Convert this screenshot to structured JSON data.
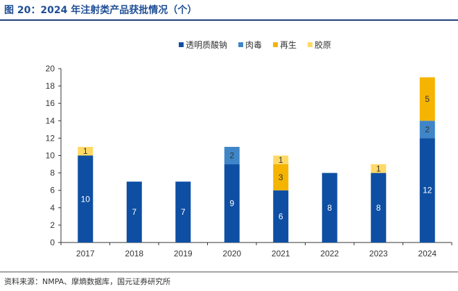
{
  "figure": {
    "title": "图 20：2024 年注射类产品获批情况（个）",
    "source": "资料来源：NMPA、摩熵数据库，国元证券研究所"
  },
  "chart_data": {
    "type": "bar",
    "stacked": true,
    "categories": [
      "2017",
      "2018",
      "2019",
      "2020",
      "2021",
      "2022",
      "2023",
      "2024"
    ],
    "series": [
      {
        "name": "透明质酸钠",
        "color": "#0e4fa3",
        "label_color": "#ffffff",
        "values": [
          10,
          7,
          7,
          9,
          6,
          8,
          8,
          12
        ]
      },
      {
        "name": "肉毒",
        "color": "#3f86c8",
        "label_color": "#333333",
        "values": [
          0,
          0,
          0,
          2,
          0,
          0,
          0,
          2
        ]
      },
      {
        "name": "再生",
        "color": "#f5b400",
        "label_color": "#333333",
        "values": [
          0,
          0,
          0,
          0,
          3,
          0,
          0,
          5
        ]
      },
      {
        "name": "胶原",
        "color": "#ffd966",
        "label_color": "#333333",
        "values": [
          1,
          0,
          0,
          0,
          1,
          0,
          1,
          0
        ]
      }
    ],
    "ylim": [
      0,
      20
    ],
    "yticks": [
      0,
      2,
      4,
      6,
      8,
      10,
      12,
      14,
      16,
      18,
      20
    ],
    "legend_position": "top-center",
    "grid": false
  }
}
